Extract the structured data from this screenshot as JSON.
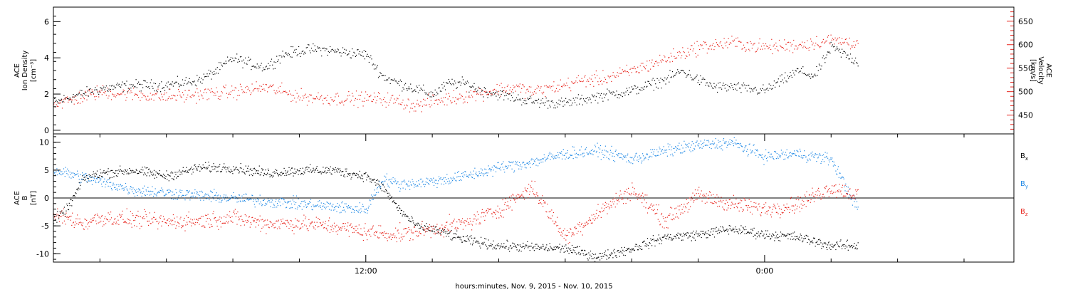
{
  "colors": {
    "black": "#000000",
    "red": "#e8241c",
    "blue": "#1e88e5"
  },
  "chart_data": [
    {
      "type": "scatter",
      "panel": "top",
      "ylabel_lines": [
        "ACE",
        "Ion Density",
        "[cm⁻³]"
      ],
      "ylabel_right_lines": [
        "ACE",
        "Velocity",
        "[km/s]"
      ],
      "ylim": [
        -0.2,
        6.8
      ],
      "yticks": [
        0,
        2,
        4,
        6
      ],
      "ylim_right": [
        410,
        680
      ],
      "yticks_right": [
        450,
        500,
        550,
        600,
        650
      ],
      "x_hours_range": [
        2.6,
        31.5
      ],
      "series": [
        {
          "name": "Ion Density",
          "axis": "left",
          "color": "#000000",
          "x": [
            2.6,
            3.0,
            4.0,
            5.0,
            6.0,
            7.0,
            7.5,
            8.0,
            8.5,
            9.0,
            9.5,
            10.0,
            10.5,
            11.0,
            11.5,
            12.0,
            12.5,
            13.0,
            13.5,
            14.0,
            14.5,
            15.0,
            15.5,
            16.0,
            17.0,
            18.0,
            19.0,
            20.0,
            21.0,
            21.5,
            22.0,
            22.5,
            23.0,
            23.5,
            24.0,
            25.0,
            25.5,
            26.0,
            26.8
          ],
          "y": [
            1.5,
            1.8,
            2.3,
            2.5,
            2.5,
            2.8,
            3.3,
            4.0,
            3.7,
            3.5,
            4.2,
            4.4,
            4.5,
            4.4,
            4.3,
            4.2,
            3.0,
            2.6,
            2.3,
            2.0,
            2.6,
            2.6,
            2.2,
            2.0,
            1.6,
            1.5,
            1.9,
            2.2,
            2.8,
            3.3,
            2.8,
            2.4,
            2.4,
            2.3,
            2.2,
            3.3,
            3.0,
            4.6,
            3.8
          ]
        },
        {
          "name": "Velocity",
          "axis": "right",
          "color": "#e8241c",
          "x": [
            2.6,
            3.0,
            4.0,
            5.0,
            6.0,
            7.0,
            8.0,
            9.0,
            9.5,
            10.0,
            11.0,
            12.0,
            12.5,
            13.0,
            13.5,
            14.0,
            15.0,
            16.0,
            16.5,
            17.0,
            18.0,
            18.5,
            19.0,
            19.5,
            20.0,
            21.0,
            22.0,
            23.0,
            24.0,
            25.0,
            26.0,
            26.8
          ],
          "y": [
            475,
            480,
            500,
            495,
            490,
            495,
            500,
            510,
            500,
            490,
            486,
            486,
            485,
            480,
            470,
            480,
            492,
            505,
            510,
            500,
            515,
            525,
            527,
            535,
            545,
            570,
            595,
            605,
            595,
            600,
            610,
            605
          ]
        }
      ]
    },
    {
      "type": "scatter",
      "panel": "bottom",
      "ylabel_lines": [
        "ACE",
        "B",
        "[nT]"
      ],
      "ylim": [
        -11.5,
        11.5
      ],
      "yticks": [
        -10,
        -5,
        0,
        5,
        10
      ],
      "x_hours_range": [
        2.6,
        31.5
      ],
      "xticks": [
        12,
        24
      ],
      "xtick_labels": [
        "12:00",
        "0:00"
      ],
      "xlabel": "hours:minutes, Nov.  9, 2015 - Nov. 10, 2015",
      "legend_labels": [
        "B",
        "B",
        "B"
      ],
      "legend_subscripts": [
        "x",
        "y",
        "z"
      ],
      "series": [
        {
          "name": "Bx",
          "color": "#000000",
          "x": [
            2.6,
            3.0,
            3.5,
            4.0,
            5.0,
            6.0,
            7.0,
            8.0,
            9.0,
            10.0,
            11.0,
            12.0,
            12.5,
            13.0,
            13.5,
            14.0,
            15.0,
            16.0,
            17.0,
            18.0,
            19.0,
            20.0,
            21.0,
            22.0,
            23.0,
            24.0,
            25.0,
            26.0,
            26.8
          ],
          "y": [
            -4,
            -2,
            3.5,
            4.5,
            5.0,
            4.0,
            5.5,
            5.5,
            4.5,
            5.0,
            5.0,
            4.0,
            2.0,
            -2.0,
            -5.0,
            -5.5,
            -7.5,
            -8.5,
            -8.8,
            -9.0,
            -10.5,
            -9.0,
            -7.0,
            -6.5,
            -5.5,
            -6.5,
            -7.0,
            -8.5,
            -8.5
          ]
        },
        {
          "name": "By",
          "color": "#1e88e5",
          "x": [
            2.6,
            3.0,
            4.0,
            5.0,
            6.0,
            7.0,
            8.0,
            9.0,
            10.0,
            11.0,
            12.0,
            12.5,
            13.0,
            14.0,
            15.0,
            16.0,
            17.0,
            18.0,
            19.0,
            20.0,
            21.0,
            22.0,
            23.0,
            24.0,
            25.0,
            26.0,
            26.8
          ],
          "y": [
            5.0,
            4.5,
            3.0,
            1.5,
            1.0,
            0.5,
            0.0,
            -0.5,
            -1.0,
            -1.5,
            -2.0,
            3.5,
            2.5,
            3.0,
            4.0,
            5.5,
            6.5,
            8.0,
            8.5,
            7.0,
            8.5,
            9.5,
            10.0,
            7.5,
            8.0,
            7.0,
            -2.0
          ]
        },
        {
          "name": "Bz",
          "color": "#e8241c",
          "x": [
            2.6,
            3.0,
            3.5,
            4.0,
            5.0,
            6.0,
            7.0,
            8.0,
            9.0,
            10.0,
            11.0,
            12.0,
            13.0,
            14.0,
            15.0,
            16.0,
            17.0,
            18.0,
            19.0,
            20.0,
            21.0,
            22.0,
            23.0,
            24.0,
            25.0,
            26.0,
            26.8
          ],
          "y": [
            -3.0,
            -3.5,
            -4.5,
            -3.5,
            -3.8,
            -4.2,
            -4.0,
            -3.5,
            -4.5,
            -4.5,
            -5.0,
            -6.0,
            -6.5,
            -5.5,
            -4.5,
            -2.0,
            2.0,
            -7.0,
            -2.5,
            1.5,
            -4.0,
            0.5,
            -1.0,
            -2.0,
            -1.0,
            2.0,
            0.5
          ]
        }
      ]
    }
  ]
}
